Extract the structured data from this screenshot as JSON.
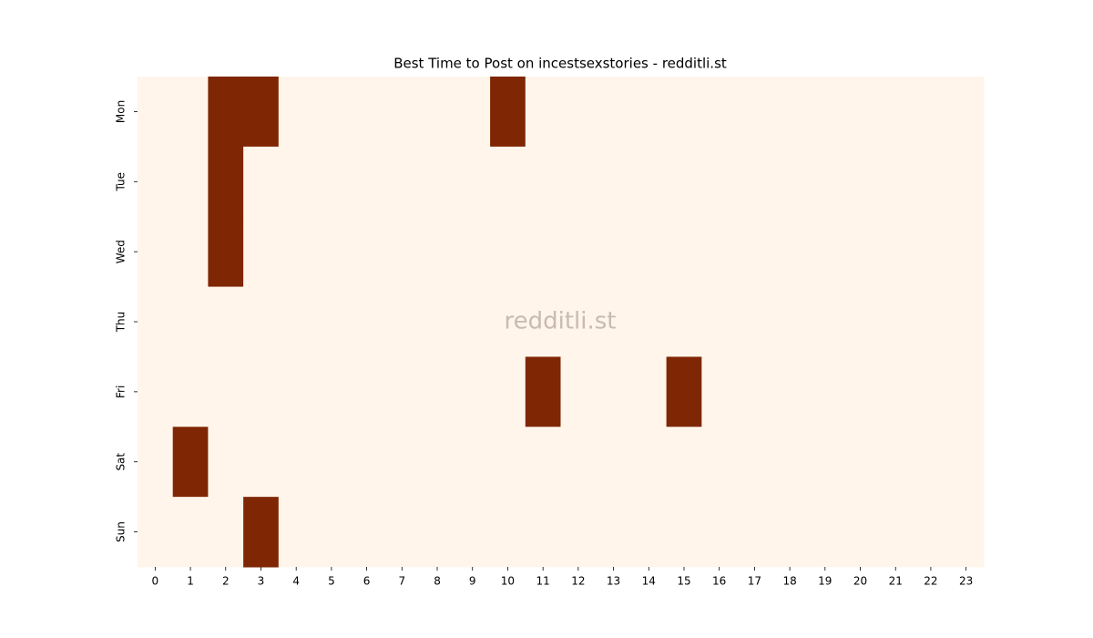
{
  "chart_data": {
    "type": "heatmap",
    "title": "Best Time to Post on incestsexstories - redditli.st",
    "watermark": "redditli.st",
    "x": [
      0,
      1,
      2,
      3,
      4,
      5,
      6,
      7,
      8,
      9,
      10,
      11,
      12,
      13,
      14,
      15,
      16,
      17,
      18,
      19,
      20,
      21,
      22,
      23
    ],
    "y": [
      "Mon",
      "Tue",
      "Wed",
      "Thu",
      "Fri",
      "Sat",
      "Sun"
    ],
    "values": [
      [
        0,
        0,
        1,
        1,
        0,
        0,
        0,
        0,
        0,
        0,
        1,
        0,
        0,
        0,
        0,
        0,
        0,
        0,
        0,
        0,
        0,
        0,
        0,
        0
      ],
      [
        0,
        0,
        1,
        0,
        0,
        0,
        0,
        0,
        0,
        0,
        0,
        0,
        0,
        0,
        0,
        0,
        0,
        0,
        0,
        0,
        0,
        0,
        0,
        0
      ],
      [
        0,
        0,
        1,
        0,
        0,
        0,
        0,
        0,
        0,
        0,
        0,
        0,
        0,
        0,
        0,
        0,
        0,
        0,
        0,
        0,
        0,
        0,
        0,
        0
      ],
      [
        0,
        0,
        0,
        0,
        0,
        0,
        0,
        0,
        0,
        0,
        0,
        0,
        0,
        0,
        0,
        0,
        0,
        0,
        0,
        0,
        0,
        0,
        0,
        0
      ],
      [
        0,
        0,
        0,
        0,
        0,
        0,
        0,
        0,
        0,
        0,
        0,
        1,
        0,
        0,
        0,
        1,
        0,
        0,
        0,
        0,
        0,
        0,
        0,
        0
      ],
      [
        0,
        1,
        0,
        0,
        0,
        0,
        0,
        0,
        0,
        0,
        0,
        0,
        0,
        0,
        0,
        0,
        0,
        0,
        0,
        0,
        0,
        0,
        0,
        0
      ],
      [
        0,
        0,
        0,
        1,
        0,
        0,
        0,
        0,
        0,
        0,
        0,
        0,
        0,
        0,
        0,
        0,
        0,
        0,
        0,
        0,
        0,
        0,
        0,
        0
      ]
    ],
    "colors": [
      "#fff5eb",
      "#7f2704"
    ]
  }
}
